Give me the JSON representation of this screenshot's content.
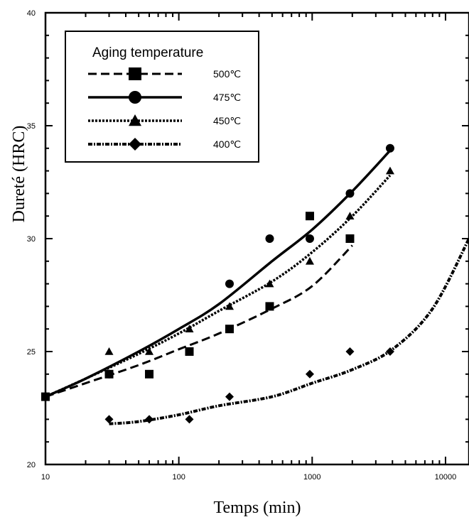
{
  "chart_data": {
    "type": "line",
    "xlabel": "Temps (min)",
    "ylabel": "Dureté (HRC)",
    "x_scale": "log",
    "xlim": [
      10,
      15000
    ],
    "ylim": [
      20,
      40
    ],
    "x_ticks": [
      10,
      100,
      1000,
      10000
    ],
    "x_tick_labels": [
      "10",
      "100",
      "1000",
      "10000"
    ],
    "y_ticks": [
      20,
      25,
      30,
      35,
      40
    ],
    "y_tick_labels": [
      "20",
      "25",
      "30",
      "35",
      "40"
    ],
    "legend": {
      "title": "Aging temperature",
      "position": "top-left"
    },
    "series": [
      {
        "name": "500℃",
        "marker": "square",
        "dash": "dashed",
        "x": [
          10,
          30,
          60,
          120,
          240,
          480,
          960,
          1920
        ],
        "y": [
          23,
          24,
          24,
          25,
          26,
          27,
          31,
          30
        ],
        "fit_x": [
          10,
          20,
          50,
          100,
          200,
          500,
          1000,
          2000
        ],
        "fit_y": [
          23,
          23.6,
          24.4,
          25.1,
          25.8,
          26.9,
          27.9,
          29.7
        ]
      },
      {
        "name": "475℃",
        "marker": "circle",
        "dash": "solid",
        "x": [
          10,
          30,
          240,
          480,
          960,
          1920,
          3840
        ],
        "y": [
          23,
          24,
          28,
          30,
          30,
          32,
          34
        ],
        "fit_x": [
          10,
          20,
          50,
          100,
          200,
          500,
          1000,
          2000,
          3840
        ],
        "fit_y": [
          23,
          23.8,
          25,
          26,
          27.1,
          29,
          30.4,
          32.1,
          33.9
        ]
      },
      {
        "name": "450℃",
        "marker": "triangle",
        "dash": "dotted",
        "x": [
          10,
          30,
          60,
          120,
          240,
          480,
          960,
          1920,
          3840
        ],
        "y": [
          23,
          25,
          25,
          26,
          27,
          28,
          29,
          31,
          33
        ],
        "fit_x": [
          10,
          20,
          50,
          100,
          200,
          500,
          1000,
          2000,
          3840
        ],
        "fit_y": [
          23,
          23.8,
          24.9,
          25.8,
          26.8,
          28.1,
          29.4,
          31,
          32.8
        ]
      },
      {
        "name": "400℃",
        "marker": "diamond",
        "dash": "dash-dot",
        "x": [
          30,
          60,
          120,
          240,
          960,
          1920,
          3840
        ],
        "y": [
          22,
          22,
          22,
          23,
          24,
          25,
          25
        ],
        "fit_x": [
          30,
          50,
          100,
          200,
          500,
          1000,
          2000,
          4000,
          8000,
          15000
        ],
        "fit_y": [
          21.8,
          21.9,
          22.2,
          22.6,
          23,
          23.6,
          24.2,
          25.1,
          26.9,
          30
        ]
      }
    ]
  }
}
